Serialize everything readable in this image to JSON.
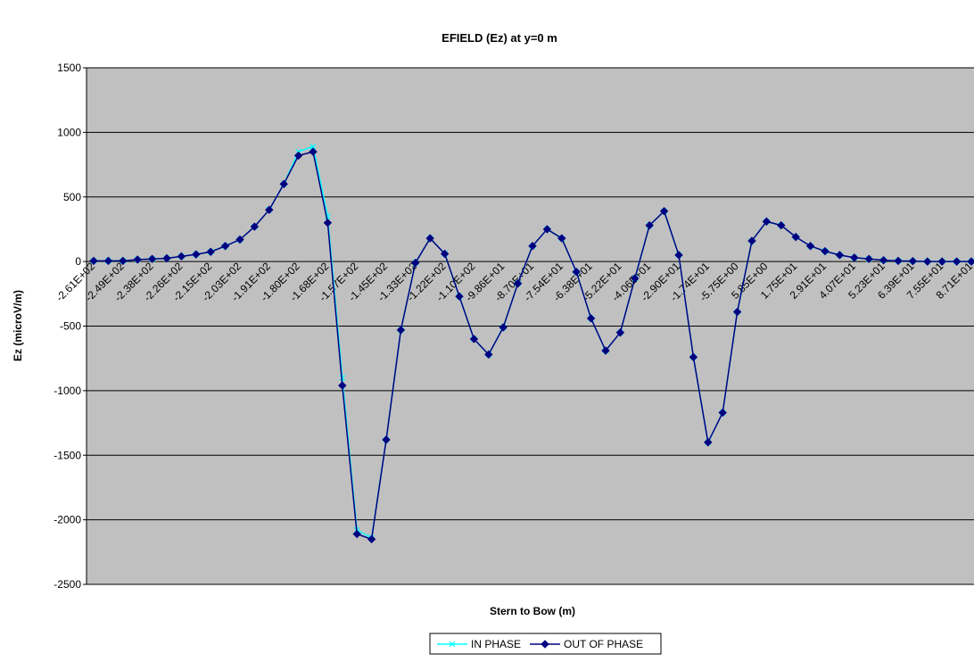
{
  "chart_data": {
    "type": "line",
    "title": "EFIELD (Ez) at y=0 m",
    "x_label": "Stern to Bow (m)",
    "y_label": "Ez (microV/m)",
    "categories": [
      "-2.61E+02",
      null,
      "-2.49E+02",
      null,
      "-2.38E+02",
      null,
      "-2.26E+02",
      null,
      "-2.15E+02",
      null,
      "-2.03E+02",
      null,
      "-1.91E+02",
      null,
      "-1.80E+02",
      null,
      "-1.68E+02",
      null,
      "-1.57E+02",
      null,
      "-1.45E+02",
      null,
      "-1.33E+02",
      null,
      "-1.22E+02",
      null,
      "-1.10E+02",
      null,
      "-9.86E+01",
      null,
      "-8.70E+01",
      null,
      "-7.54E+01",
      null,
      "-6.38E+01",
      null,
      "-5.22E+01",
      null,
      "-4.06E+01",
      null,
      "-2.90E+01",
      null,
      "-1.74E+01",
      null,
      "-5.75E+00",
      null,
      "5.85E+00",
      null,
      "1.75E+01",
      null,
      "2.91E+01",
      null,
      "4.07E+01",
      null,
      "5.23E+01",
      null,
      "6.39E+01",
      null,
      "7.55E+01",
      null,
      "8.71E+01"
    ],
    "series": [
      {
        "name": "IN PHASE",
        "color": "#00ffff",
        "marker": "x",
        "values": [
          5,
          5,
          5,
          15,
          20,
          25,
          40,
          55,
          75,
          120,
          170,
          270,
          400,
          600,
          850,
          890,
          350,
          -900,
          -2080,
          -2140,
          -1380,
          -530,
          -10,
          180,
          60,
          -270,
          -600,
          -720,
          -510,
          -170,
          120,
          250,
          180,
          -80,
          -440,
          -690,
          -550,
          -130,
          280,
          390,
          50,
          -740,
          -1400,
          -1170,
          -390,
          160,
          310,
          280,
          190,
          120,
          80,
          50,
          30,
          20,
          10,
          5,
          3,
          0,
          0,
          0,
          0
        ]
      },
      {
        "name": "OUT OF PHASE",
        "color": "#000080",
        "marker": "diamond",
        "values": [
          5,
          5,
          5,
          15,
          20,
          25,
          40,
          55,
          75,
          120,
          170,
          270,
          400,
          600,
          820,
          850,
          300,
          -960,
          -2110,
          -2150,
          -1380,
          -530,
          -10,
          180,
          60,
          -270,
          -600,
          -720,
          -510,
          -170,
          120,
          250,
          180,
          -80,
          -440,
          -690,
          -550,
          -130,
          280,
          390,
          50,
          -740,
          -1400,
          -1170,
          -390,
          160,
          310,
          280,
          190,
          120,
          80,
          50,
          30,
          20,
          10,
          5,
          3,
          0,
          0,
          0,
          0
        ]
      }
    ],
    "ylim": [
      -2500,
      1500
    ],
    "yticks": [
      -2500,
      -2000,
      -1500,
      -1000,
      -500,
      0,
      500,
      1000,
      1500
    ],
    "grid": true,
    "plot_background": "#c0c0c0",
    "legend": "bottom"
  }
}
